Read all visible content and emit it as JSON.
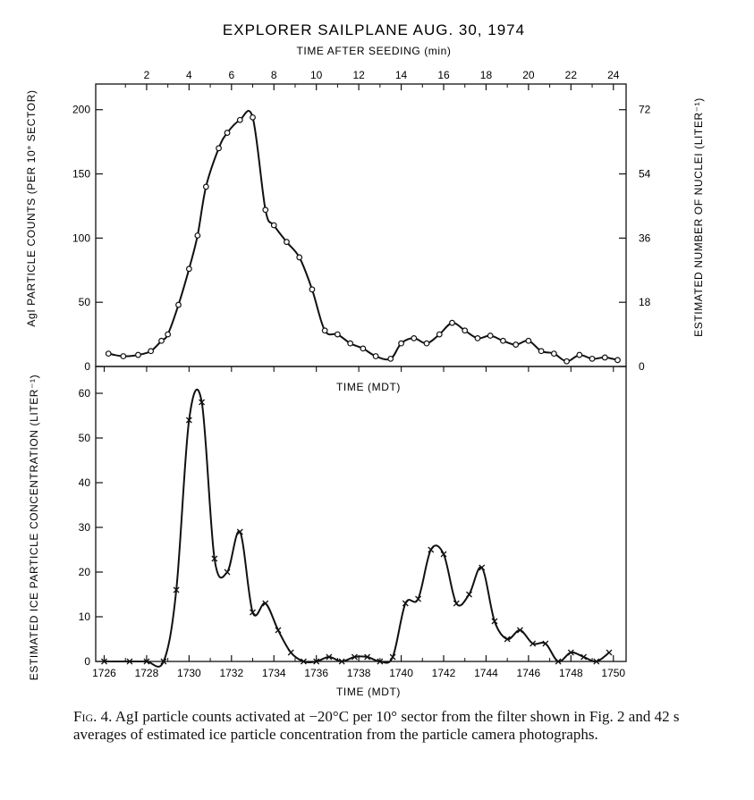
{
  "figure": {
    "title": "EXPLORER SAILPLANE AUG. 30, 1974",
    "top_axis_label": "TIME AFTER SEEDING (min)",
    "caption_label": "Fig. 4.",
    "caption_text": "AgI particle counts activated at −20°C per 10° sector from the filter shown in Fig. 2 and 42 s averages of estimated ice particle concentration from the particle camera photographs."
  },
  "chart_data": [
    {
      "type": "line",
      "panel": "top",
      "title": "EXPLORER SAILPLANE AUG. 30, 1974",
      "xlabel": "TIME (MDT)",
      "xlabel_top": "TIME AFTER SEEDING (min)",
      "ylabel": "AgI PARTICLE COUNTS (PER 10° SECTOR)",
      "ylabel_right": "ESTIMATED NUMBER OF NUCLEI (LITER⁻¹)",
      "xlim": [
        1725.6,
        1750.6
      ],
      "ylim": [
        0,
        220
      ],
      "y_ticks": [
        0,
        50,
        100,
        150,
        200
      ],
      "y_tick_labels": [
        "0",
        "50",
        "100",
        "150",
        "200"
      ],
      "y_right_ticks": [
        0,
        18,
        36,
        54,
        72
      ],
      "y_right_tick_labels": [
        "0",
        "18",
        "36",
        "54",
        "72"
      ],
      "y_right_scale": 0.36,
      "x_top_ticks": [
        2,
        4,
        6,
        8,
        10,
        12,
        14,
        16,
        18,
        20,
        22,
        24
      ],
      "x_top_tick_labels": [
        "2",
        "4",
        "6",
        "8",
        "10",
        "12",
        "14",
        "16",
        "18",
        "20",
        "22",
        "24"
      ],
      "x_top_offset": 1726,
      "marker": "circle",
      "series": [
        {
          "name": "AgI particle counts",
          "x": [
            1726.2,
            1726.9,
            1727.6,
            1728.2,
            1728.7,
            1729.0,
            1729.5,
            1730.0,
            1730.4,
            1730.8,
            1731.4,
            1731.8,
            1732.4,
            1733.0,
            1733.6,
            1734.0,
            1734.6,
            1735.2,
            1735.8,
            1736.4,
            1737.0,
            1737.6,
            1738.2,
            1738.8,
            1739.5,
            1740.0,
            1740.6,
            1741.2,
            1741.8,
            1742.4,
            1743.0,
            1743.6,
            1744.2,
            1744.8,
            1745.4,
            1746.0,
            1746.6,
            1747.2,
            1747.8,
            1748.4,
            1749.0,
            1749.6,
            1750.2
          ],
          "values": [
            10,
            8,
            9,
            12,
            20,
            25,
            48,
            76,
            102,
            140,
            170,
            182,
            192,
            194,
            122,
            110,
            97,
            85,
            60,
            28,
            25,
            18,
            14,
            8,
            6,
            18,
            22,
            18,
            25,
            34,
            28,
            22,
            24,
            20,
            17,
            20,
            12,
            10,
            4,
            9,
            6,
            7,
            5
          ],
          "note": "approximate reading"
        }
      ]
    },
    {
      "type": "line",
      "panel": "bottom",
      "xlabel": "TIME (MDT)",
      "ylabel": "ESTIMATED ICE PARTICLE CONCENTRATION (LITER⁻¹)",
      "xlim": [
        1725.6,
        1750.6
      ],
      "ylim": [
        0,
        66
      ],
      "x_ticks": [
        1726,
        1728,
        1730,
        1732,
        1734,
        1736,
        1738,
        1740,
        1742,
        1744,
        1746,
        1748,
        1750
      ],
      "x_tick_labels": [
        "1726",
        "1728",
        "1730",
        "1732",
        "1734",
        "1736",
        "1738",
        "1740",
        "1742",
        "1744",
        "1746",
        "1748",
        "1750"
      ],
      "y_ticks": [
        0,
        10,
        20,
        30,
        40,
        50,
        60
      ],
      "y_tick_labels": [
        "0",
        "10",
        "20",
        "30",
        "40",
        "50",
        "60"
      ],
      "marker": "x",
      "series": [
        {
          "name": "Estimated ice particle concentration",
          "x": [
            1726.0,
            1727.2,
            1728.0,
            1728.8,
            1729.4,
            1730.0,
            1730.6,
            1731.2,
            1731.8,
            1732.4,
            1733.0,
            1733.6,
            1734.2,
            1734.8,
            1735.4,
            1736.0,
            1736.6,
            1737.2,
            1737.8,
            1738.4,
            1739.0,
            1739.6,
            1740.2,
            1740.8,
            1741.4,
            1742.0,
            1742.6,
            1743.2,
            1743.8,
            1744.4,
            1745.0,
            1745.6,
            1746.2,
            1746.8,
            1747.4,
            1748.0,
            1748.6,
            1749.2,
            1749.8
          ],
          "values": [
            0,
            0,
            0,
            0,
            16,
            54,
            58,
            23,
            20,
            29,
            11,
            13,
            7,
            2,
            0,
            0,
            1,
            0,
            1,
            1,
            0,
            1,
            13,
            14,
            25,
            24,
            13,
            15,
            21,
            9,
            5,
            7,
            4,
            4,
            0,
            2,
            1,
            0,
            2
          ],
          "note": "approximate reading"
        }
      ]
    }
  ]
}
